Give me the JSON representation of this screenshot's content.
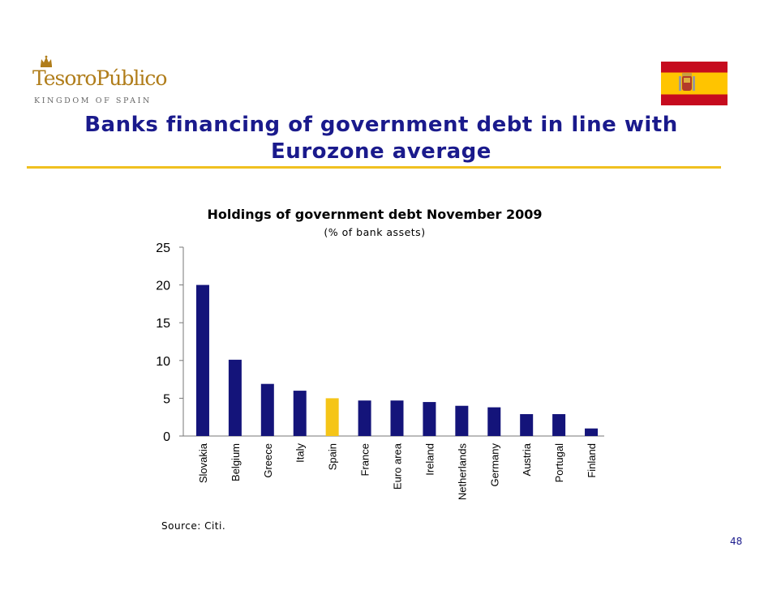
{
  "header": {
    "logo_word_1": "Tesoro",
    "logo_word_2": "Público",
    "logo_subtitle": "KINGDOM OF SPAIN",
    "title_line_1": "Banks financing of government debt in line with",
    "title_line_2": "Eurozone average"
  },
  "colors": {
    "title": "#1a1a8c",
    "accent_rule": "#f0c020",
    "bar_default": "#14147a",
    "bar_highlight": "#f5c518",
    "flag_red": "#c60b1e",
    "flag_yellow": "#ffc400",
    "logo_gold": "#b07d1a"
  },
  "chart_data": {
    "type": "bar",
    "title": "Holdings of government debt November 2009",
    "subtitle": "(% of bank assets)",
    "categories": [
      "Slovakia",
      "Belgium",
      "Greece",
      "Italy",
      "Spain",
      "France",
      "Euro area",
      "Ireland",
      "Netherlands",
      "Germany",
      "Austria",
      "Portugal",
      "Finland"
    ],
    "values": [
      20.0,
      10.1,
      6.9,
      6.0,
      5.0,
      4.7,
      4.7,
      4.5,
      4.0,
      3.8,
      2.9,
      2.9,
      1.0
    ],
    "highlight": "Spain",
    "ylim": [
      0,
      25
    ],
    "yticks": [
      0,
      5,
      10,
      15,
      20,
      25
    ],
    "xlabel": "",
    "ylabel": "",
    "grid": false
  },
  "footer": {
    "source": "Source: Citi.",
    "page_number": "48"
  }
}
